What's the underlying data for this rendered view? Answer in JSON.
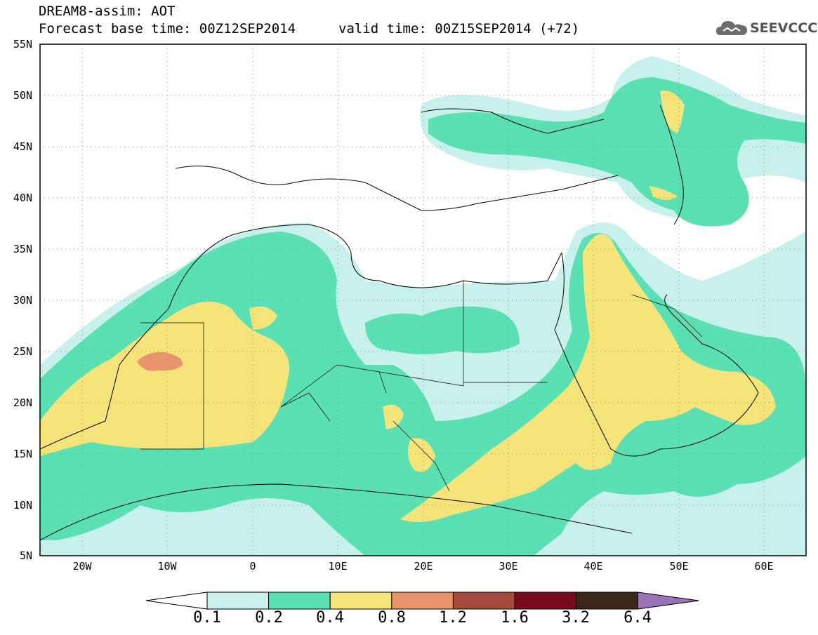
{
  "header": {
    "title_line1": "DREAM8-assim: AOT",
    "title_line2": "Forecast base time: 00Z12SEP2014",
    "valid_time": "valid time: 00Z15SEP2014 (+72)",
    "logo_text": "SEEVCCC"
  },
  "map": {
    "lat_labels": [
      "55N",
      "50N",
      "45N",
      "40N",
      "35N",
      "30N",
      "25N",
      "20N",
      "15N",
      "10N",
      "5N"
    ],
    "lon_labels": [
      "20W",
      "10W",
      "0",
      "10E",
      "20E",
      "30E",
      "40E",
      "50E",
      "60E"
    ],
    "lat_range": [
      5,
      55
    ],
    "lon_range": [
      -25,
      65
    ],
    "grid": "dotted"
  },
  "colorbar": {
    "labels": [
      "0.1",
      "0.2",
      "0.4",
      "0.8",
      "1.2",
      "1.6",
      "3.2",
      "6.4"
    ],
    "colors": [
      "#ffffff",
      "#c8f0ec",
      "#5be0b4",
      "#f5e47a",
      "#e8946c",
      "#a64b3c",
      "#7a0a1c",
      "#3c2618",
      "#9a72b8"
    ]
  }
}
